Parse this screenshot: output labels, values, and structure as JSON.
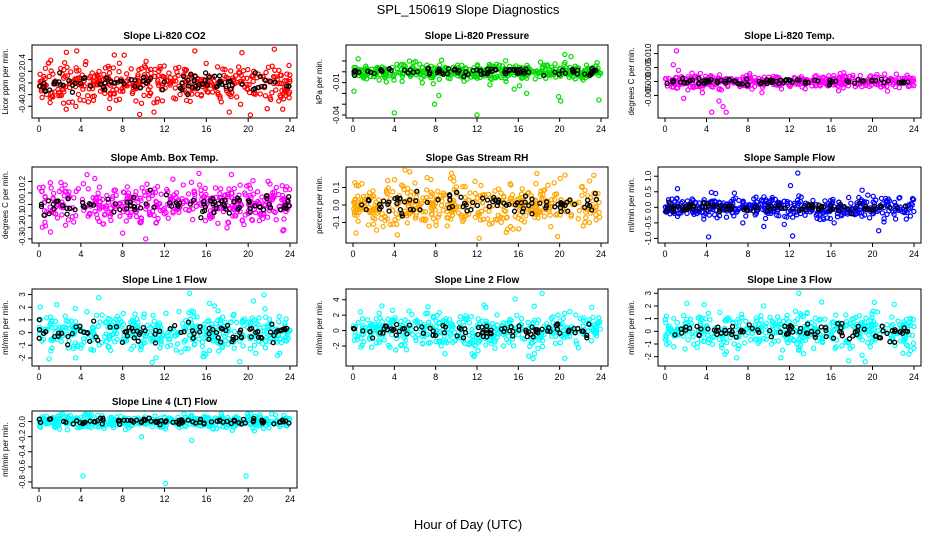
{
  "figure": {
    "title": "SPL_150619  Slope Diagnostics",
    "xlabel": "Hour of Day (UTC)"
  },
  "chart_data": [
    {
      "type": "scatter",
      "title": "Slope Li-820 CO2",
      "ylabel": "Licor ppm per min.",
      "xlim": [
        0,
        24
      ],
      "ylim": [
        -0.55,
        0.6
      ],
      "yticks": [
        -0.4,
        -0.2,
        0,
        0.2,
        0.4
      ],
      "ytick_labels": [
        "-0.4",
        "-0.2",
        "0.0",
        "0.2",
        "0.4"
      ],
      "xticks": [
        0,
        4,
        8,
        12,
        16,
        20,
        24
      ],
      "spread": 0.16,
      "outliers": [
        [
          3.6,
          0.55
        ],
        [
          2.6,
          -0.45
        ],
        [
          4.3,
          -0.3
        ],
        [
          7.2,
          0.48
        ],
        [
          11,
          -0.5
        ],
        [
          14.9,
          0.55
        ],
        [
          18.2,
          -0.5
        ],
        [
          19.4,
          0.52
        ],
        [
          22.5,
          0.58
        ],
        [
          23.3,
          -0.45
        ],
        [
          0.3,
          -0.25
        ],
        [
          9.8,
          -0.35
        ]
      ],
      "colors": {
        "main": "#ff0000",
        "overlay": "#000000"
      }
    },
    {
      "type": "scatter",
      "title": "Slope Li-820 Pressure",
      "ylabel": "kPa per min.",
      "xlim": [
        0,
        24
      ],
      "ylim": [
        -0.04,
        0.022
      ],
      "yticks": [
        -0.04,
        -0.03,
        -0.02,
        -0.01,
        0,
        0.01
      ],
      "ytick_labels": [
        "-0.04",
        "",
        "",
        "-0.01",
        "",
        ""
      ],
      "xticks": [
        0,
        4,
        8,
        12,
        16,
        20,
        24
      ],
      "spread": 0.004,
      "outliers": [
        [
          0.1,
          -0.018
        ],
        [
          0.5,
          0.012
        ],
        [
          4,
          -0.038
        ],
        [
          7.9,
          -0.03
        ],
        [
          8.3,
          -0.022
        ],
        [
          12,
          -0.04
        ],
        [
          15.6,
          -0.016
        ],
        [
          16.1,
          -0.013
        ],
        [
          16.8,
          -0.02
        ],
        [
          19.9,
          -0.023
        ],
        [
          20.1,
          -0.027
        ],
        [
          21.1,
          0.014
        ],
        [
          23.8,
          -0.026
        ],
        [
          20.5,
          0.016
        ]
      ],
      "colors": {
        "main": "#00dd00",
        "overlay": "#000000"
      }
    },
    {
      "type": "scatter",
      "title": "Slope Li-820 Temp.",
      "ylabel": "degrees C per min.",
      "xlim": [
        0,
        24
      ],
      "ylim": [
        -0.012,
        0.012
      ],
      "yticks": [
        -0.005,
        0,
        0.005,
        0.01
      ],
      "ytick_labels": [
        "-0.005",
        "0.000",
        "0.005",
        "0.010"
      ],
      "xticks": [
        0,
        4,
        8,
        12,
        16,
        20,
        24
      ],
      "spread": 0.0012,
      "outliers": [
        [
          1.1,
          0.011
        ],
        [
          0.8,
          0.006
        ],
        [
          1.3,
          0.004
        ],
        [
          1.8,
          -0.006
        ],
        [
          2.2,
          -0.003
        ],
        [
          2.6,
          0.003
        ],
        [
          4.5,
          -0.011
        ],
        [
          5.2,
          -0.007
        ],
        [
          5.6,
          -0.009
        ],
        [
          5.9,
          -0.011
        ],
        [
          3.6,
          -0.004
        ],
        [
          2.3,
          0.001
        ]
      ],
      "colors": {
        "main": "#ff00ff",
        "overlay": "#000000"
      }
    },
    {
      "type": "scatter",
      "title": "Slope Amb. Box Temp.",
      "ylabel": "degrees C per min.",
      "xlim": [
        0,
        24
      ],
      "ylim": [
        -0.31,
        0.3
      ],
      "yticks": [
        -0.3,
        -0.2,
        -0.1,
        0,
        0.1,
        0.2
      ],
      "ytick_labels": [
        "-0.3",
        "-0.2",
        "-0.1",
        "0.0",
        "0.1",
        "0.2"
      ],
      "xticks": [
        0,
        4,
        8,
        12,
        16,
        20,
        24
      ],
      "spread": 0.085,
      "outliers": [
        [
          4.6,
          0.26
        ],
        [
          10.2,
          -0.3
        ],
        [
          15.3,
          0.27
        ],
        [
          1.1,
          -0.24
        ],
        [
          8,
          -0.25
        ],
        [
          23.4,
          -0.22
        ],
        [
          18.4,
          0.26
        ],
        [
          12.8,
          0.22
        ]
      ],
      "colors": {
        "main": "#ff00ff",
        "overlay": "#000000"
      }
    },
    {
      "type": "scatter",
      "title": "Slope Gas Stream RH",
      "ylabel": "percent per min.",
      "xlim": [
        0,
        24
      ],
      "ylim": [
        -0.2,
        0.2
      ],
      "yticks": [
        -0.1,
        0,
        0.1
      ],
      "ytick_labels": [
        "-0.1",
        "0.0",
        "0.1"
      ],
      "xticks": [
        0,
        4,
        8,
        12,
        16,
        20,
        24
      ],
      "spread": 0.065,
      "outliers": [
        [
          5.5,
          0.19
        ],
        [
          4.3,
          -0.17
        ],
        [
          12.2,
          -0.19
        ],
        [
          17.8,
          0.18
        ],
        [
          19.8,
          -0.18
        ],
        [
          23.3,
          0.17
        ],
        [
          0.3,
          -0.16
        ],
        [
          9.7,
          0.16
        ]
      ],
      "colors": {
        "main": "#ffa500",
        "overlay": "#000000"
      }
    },
    {
      "type": "scatter",
      "title": "Slope Sample Flow",
      "ylabel": "ml/min per min.",
      "xlim": [
        0,
        24
      ],
      "ylim": [
        -1.05,
        1.2
      ],
      "yticks": [
        -1,
        -0.5,
        0,
        0.5,
        1
      ],
      "ytick_labels": [
        "-1.0",
        "-0.5",
        "0.0",
        "0.5",
        "1.0"
      ],
      "xticks": [
        0,
        4,
        8,
        12,
        16,
        20,
        24
      ],
      "spread": 0.17,
      "outliers": [
        [
          4.2,
          -0.95
        ],
        [
          12.3,
          -0.92
        ],
        [
          12.8,
          1.1
        ],
        [
          12.1,
          0.7
        ],
        [
          11.5,
          -0.55
        ],
        [
          16.3,
          -0.5
        ],
        [
          20.6,
          -0.75
        ],
        [
          1.2,
          0.6
        ],
        [
          7.5,
          -0.5
        ],
        [
          19,
          0.55
        ]
      ],
      "colors": {
        "main": "#0000ff",
        "overlay": "#000000"
      }
    },
    {
      "type": "scatter",
      "title": "Slope Line 1 Flow",
      "ylabel": "ml/min per min.",
      "xlim": [
        0,
        24
      ],
      "ylim": [
        -2.4,
        3.2
      ],
      "yticks": [
        -2,
        -1,
        0,
        1,
        2,
        3
      ],
      "ytick_labels": [
        "-2",
        "-1",
        "0",
        "1",
        "2",
        "3"
      ],
      "xticks": [
        0,
        4,
        8,
        12,
        16,
        20,
        24
      ],
      "spread": 0.75,
      "outliers": [
        [
          1.7,
          2.2
        ],
        [
          14.4,
          3.1
        ],
        [
          19.2,
          -2.3
        ],
        [
          20.5,
          2.5
        ],
        [
          3.5,
          -2
        ],
        [
          11.2,
          -2
        ],
        [
          16.3,
          2.3
        ],
        [
          22.8,
          -1.8
        ]
      ],
      "colors": {
        "main": "#00ffff",
        "overlay": "#000000"
      }
    },
    {
      "type": "scatter",
      "title": "Slope Line 2 Flow",
      "ylabel": "ml/min per min.",
      "xlim": [
        0,
        24
      ],
      "ylim": [
        -4.2,
        5
      ],
      "yticks": [
        -2,
        0,
        2,
        4
      ],
      "ytick_labels": [
        "-2",
        "0",
        "2",
        "4"
      ],
      "xticks": [
        0,
        4,
        8,
        12,
        16,
        20,
        24
      ],
      "spread": 1.1,
      "outliers": [
        [
          18.3,
          4.8
        ],
        [
          15.7,
          4.1
        ],
        [
          17,
          -3.3
        ],
        [
          8.9,
          -3
        ],
        [
          20.5,
          -3.6
        ],
        [
          2.8,
          3.2
        ],
        [
          12.1,
          -2.6
        ],
        [
          23.1,
          3
        ]
      ],
      "colors": {
        "main": "#00ffff",
        "overlay": "#000000"
      }
    },
    {
      "type": "scatter",
      "title": "Slope Line 3 Flow",
      "ylabel": "ml/min per min.",
      "xlim": [
        0,
        24
      ],
      "ylim": [
        -2.5,
        3.1
      ],
      "yticks": [
        -2,
        -1,
        0,
        1,
        2,
        3
      ],
      "ytick_labels": [
        "-2",
        "-1",
        "0",
        "1",
        "2",
        "3"
      ],
      "xticks": [
        0,
        4,
        8,
        12,
        16,
        20,
        24
      ],
      "spread": 0.75,
      "outliers": [
        [
          12.9,
          3
        ],
        [
          19.3,
          -2.4
        ],
        [
          23.5,
          -1.8
        ],
        [
          2.1,
          2.2
        ],
        [
          6.9,
          -2.1
        ],
        [
          15.1,
          2.3
        ],
        [
          9.5,
          2
        ]
      ],
      "colors": {
        "main": "#00ffff",
        "overlay": "#000000"
      }
    },
    {
      "type": "scatter",
      "title": "Slope Line 4 (LT) Flow",
      "ylabel": "ml/min per min.",
      "xlim": [
        0,
        24
      ],
      "ylim": [
        -0.84,
        0.1
      ],
      "yticks": [
        -0.8,
        -0.6,
        -0.4,
        -0.2,
        0
      ],
      "ytick_labels": [
        "-0.8",
        "-0.6",
        "-0.4",
        "-0.2",
        "0.0"
      ],
      "xticks": [
        0,
        4,
        8,
        12,
        16,
        20,
        24
      ],
      "spread": 0.045,
      "outliers": [
        [
          4.2,
          -0.72
        ],
        [
          12.1,
          -0.82
        ],
        [
          19.8,
          -0.72
        ],
        [
          14.6,
          -0.25
        ],
        [
          9.8,
          -0.2
        ],
        [
          3,
          0.08
        ],
        [
          17.5,
          0.07
        ]
      ],
      "colors": {
        "main": "#00ffff",
        "overlay": "#000000"
      }
    }
  ]
}
